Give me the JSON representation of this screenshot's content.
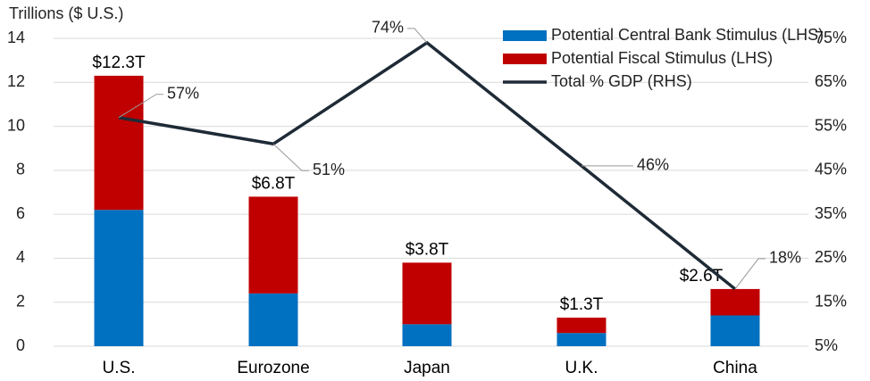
{
  "chart_data": {
    "type": "bar",
    "y_label": "Trillions ($ U.S.)",
    "categories": [
      "U.S.",
      "Eurozone",
      "Japan",
      "U.K.",
      "China"
    ],
    "series": [
      {
        "name": "Potential Central Bank Stimulus (LHS)",
        "color": "#0070c0",
        "values": [
          6.2,
          2.4,
          1.0,
          0.6,
          1.4
        ]
      },
      {
        "name": "Potential Fiscal Stimulus (LHS)",
        "color": "#c00000",
        "values": [
          6.1,
          4.4,
          2.8,
          0.7,
          1.2
        ]
      },
      {
        "name": "Total % GDP (RHS)",
        "type": "line",
        "axis": "y2",
        "color": "#1f2a37",
        "values": [
          57,
          51,
          74,
          46,
          18
        ],
        "value_labels": [
          "57%",
          "51%",
          "74%",
          "46%",
          "18%"
        ]
      }
    ],
    "totals": [
      12.3,
      6.8,
      3.8,
      1.3,
      2.6
    ],
    "total_labels": [
      "$12.3T",
      "$6.8T",
      "$3.8T",
      "$1.3T",
      "$2.6T"
    ],
    "ylim": [
      0,
      14
    ],
    "yticks": [
      0,
      2,
      4,
      6,
      8,
      10,
      12,
      14
    ],
    "y2lim": [
      5,
      75
    ],
    "y2ticks": [
      {
        "value": 5,
        "label": "5%"
      },
      {
        "value": 15,
        "label": "15%"
      },
      {
        "value": 25,
        "label": "25%"
      },
      {
        "value": 35,
        "label": "35%"
      },
      {
        "value": 45,
        "label": "45%"
      },
      {
        "value": 55,
        "label": "55%"
      },
      {
        "value": 65,
        "label": "65%"
      },
      {
        "value": 75,
        "label": "75%"
      }
    ],
    "grid": true,
    "legend": "top-right"
  }
}
